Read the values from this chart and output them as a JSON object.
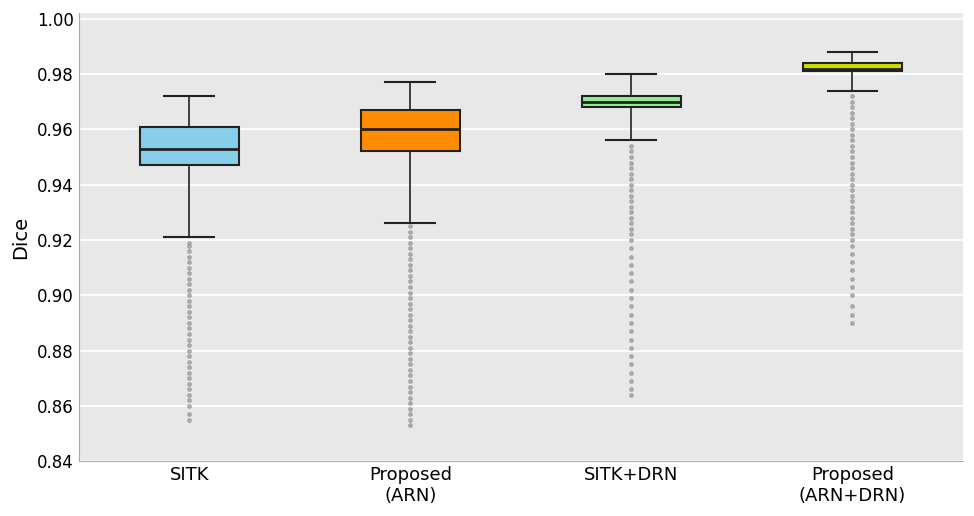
{
  "categories": [
    "SITK",
    "Proposed\n(ARN)",
    "SITK+DRN",
    "Proposed\n(ARN+DRN)"
  ],
  "colors": [
    "#87CEEB",
    "#FF8C00",
    "#90EE90",
    "#CCDD00"
  ],
  "box_stats": [
    {
      "q1": 0.947,
      "median": 0.953,
      "q3": 0.961,
      "whislo": 0.921,
      "whishi": 0.972,
      "fliers_low": [
        0.855,
        0.857,
        0.86,
        0.862,
        0.864,
        0.866,
        0.868,
        0.87,
        0.872,
        0.874,
        0.876,
        0.878,
        0.88,
        0.882,
        0.884,
        0.886,
        0.888,
        0.89,
        0.892,
        0.894,
        0.896,
        0.898,
        0.9,
        0.902,
        0.904,
        0.906,
        0.908,
        0.91,
        0.912,
        0.914,
        0.916,
        0.918,
        0.919
      ]
    },
    {
      "q1": 0.952,
      "median": 0.96,
      "q3": 0.967,
      "whislo": 0.926,
      "whishi": 0.977,
      "fliers_low": [
        0.853,
        0.855,
        0.857,
        0.859,
        0.861,
        0.863,
        0.865,
        0.867,
        0.869,
        0.871,
        0.873,
        0.875,
        0.877,
        0.879,
        0.881,
        0.883,
        0.885,
        0.887,
        0.889,
        0.891,
        0.893,
        0.895,
        0.897,
        0.899,
        0.901,
        0.903,
        0.905,
        0.907,
        0.909,
        0.911,
        0.913,
        0.915,
        0.917,
        0.919,
        0.921,
        0.923,
        0.925
      ]
    },
    {
      "q1": 0.968,
      "median": 0.97,
      "q3": 0.972,
      "whislo": 0.956,
      "whishi": 0.98,
      "fliers_low": [
        0.864,
        0.866,
        0.869,
        0.872,
        0.875,
        0.878,
        0.881,
        0.884,
        0.887,
        0.89,
        0.893,
        0.896,
        0.899,
        0.902,
        0.905,
        0.908,
        0.911,
        0.914,
        0.917,
        0.92,
        0.922,
        0.924,
        0.926,
        0.928,
        0.93,
        0.932,
        0.934,
        0.936,
        0.938,
        0.94,
        0.942,
        0.944,
        0.946,
        0.948,
        0.95,
        0.952,
        0.954
      ]
    },
    {
      "q1": 0.981,
      "median": 0.982,
      "q3": 0.984,
      "whislo": 0.974,
      "whishi": 0.988,
      "fliers_low": [
        0.89,
        0.893,
        0.896,
        0.9,
        0.903,
        0.906,
        0.909,
        0.912,
        0.915,
        0.918,
        0.92,
        0.922,
        0.924,
        0.926,
        0.928,
        0.93,
        0.932,
        0.934,
        0.936,
        0.938,
        0.94,
        0.942,
        0.944,
        0.946,
        0.948,
        0.95,
        0.952,
        0.954,
        0.956,
        0.958,
        0.96,
        0.962,
        0.964,
        0.966,
        0.968,
        0.97,
        0.972
      ]
    }
  ],
  "ylim": [
    0.84,
    1.002
  ],
  "yticks": [
    0.84,
    0.86,
    0.88,
    0.9,
    0.92,
    0.94,
    0.96,
    0.98,
    1.0
  ],
  "ylabel": "Dice",
  "box_width": 0.45,
  "line_color": "#222222",
  "flier_color": "#999999",
  "flier_size": 2.5,
  "axes_bg_color": "#e8e8e8",
  "fig_bg_color": "#ffffff",
  "grid_color": "#ffffff",
  "grid_linewidth": 1.2,
  "figsize": [
    9.74,
    5.16
  ],
  "dpi": 100
}
